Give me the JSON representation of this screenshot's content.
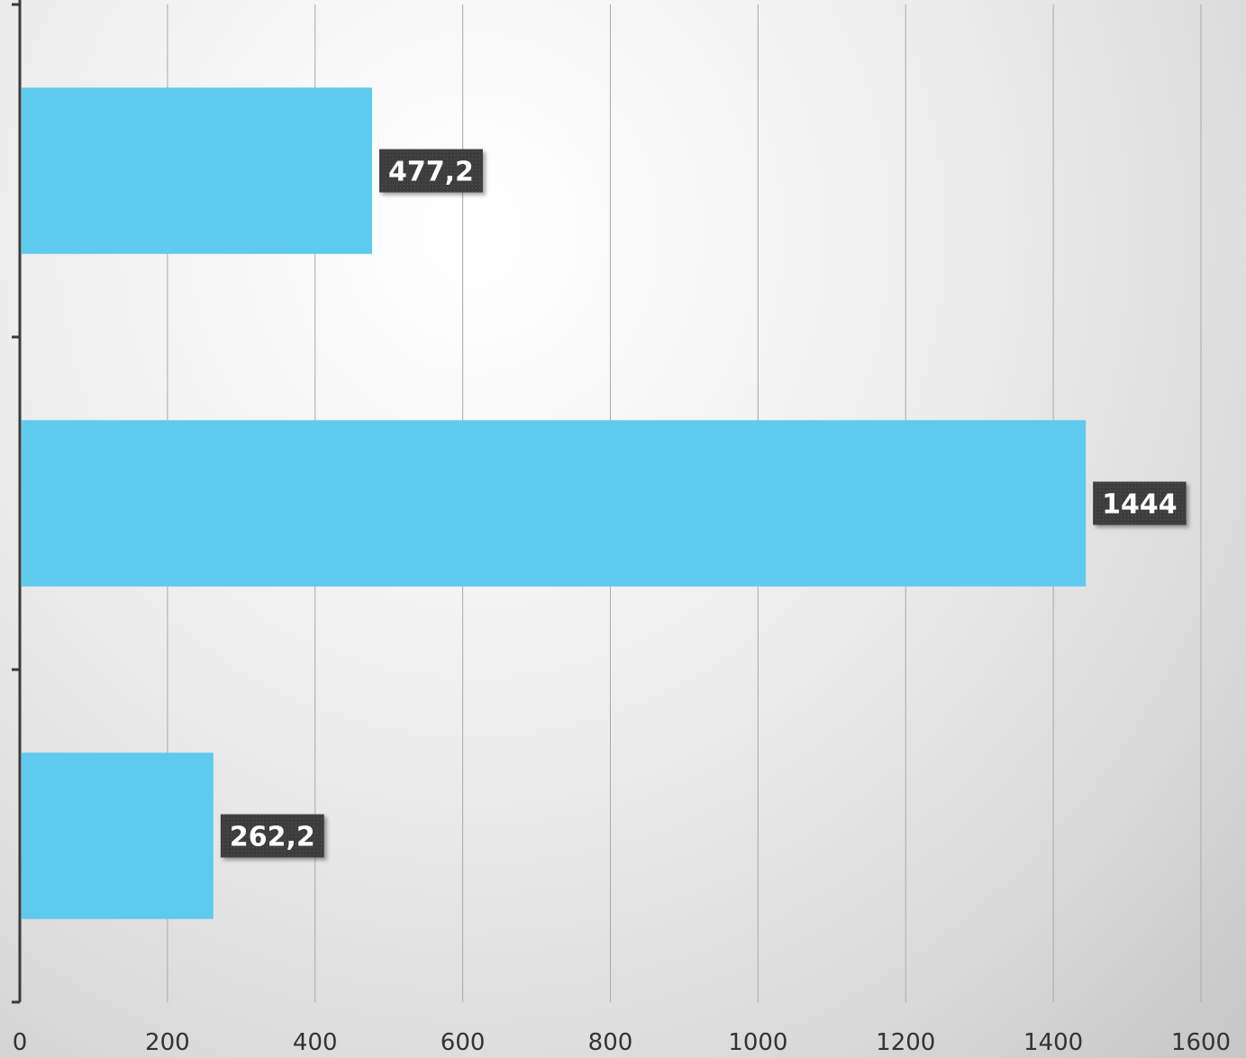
{
  "chart_data": {
    "type": "bar",
    "orientation": "horizontal",
    "title": "",
    "xlabel": "",
    "ylabel": "",
    "xlim": [
      0,
      1600
    ],
    "x_ticks": [
      "0",
      "200",
      "400",
      "600",
      "800",
      "1000",
      "1200",
      "1400",
      "1600"
    ],
    "grid": "vertical",
    "categories": [
      "",
      "",
      ""
    ],
    "values": [
      477.2,
      1444,
      262.2
    ],
    "data_labels": [
      "477,2",
      "1444",
      "262,2"
    ],
    "colors": {
      "bar": "#5ECAEE",
      "label_bg": "#3D3D3D",
      "label_text": "#FFFFFF",
      "grid": "#A9A9A9",
      "axis": "#3A3A3A"
    }
  }
}
